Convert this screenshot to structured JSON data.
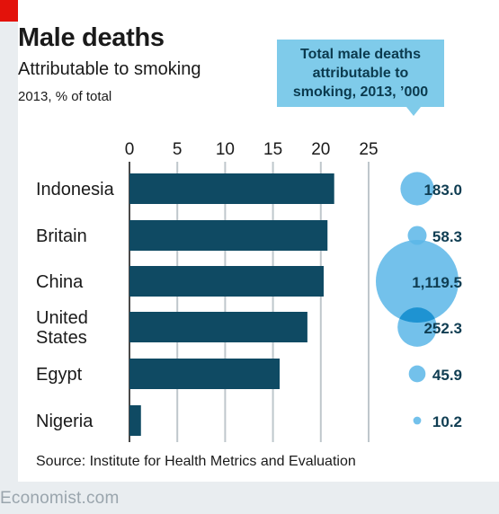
{
  "title": "Male deaths",
  "subtitle": "Attributable to smoking",
  "unit_note": "2013, % of total",
  "callout": [
    "Total male deaths",
    "attributable to",
    "smoking, 2013, ’000"
  ],
  "source": "Source: Institute for Health Metrics and Evaluation",
  "brand": "Economist.com",
  "colors": {
    "bar": "#0f4a63",
    "bubble": "#5bb6e8",
    "bubble_overlap": "#1e93d2",
    "grid": "#bfc7cc",
    "accent_red": "#e3120b"
  },
  "chart_data": {
    "type": "bar",
    "orientation": "horizontal",
    "categories": [
      [
        "Indonesia"
      ],
      [
        "Britain"
      ],
      [
        "China"
      ],
      [
        "United",
        "States"
      ],
      [
        "Egypt"
      ],
      [
        "Nigeria"
      ]
    ],
    "values": [
      21.4,
      20.7,
      20.3,
      18.6,
      15.7,
      1.2
    ],
    "xlim": [
      0,
      25
    ],
    "xticks": [
      "0",
      "5",
      "10",
      "15",
      "20",
      "25"
    ],
    "grid": true,
    "bubbles": {
      "values": [
        183.0,
        58.3,
        1119.5,
        252.3,
        45.9,
        10.2
      ],
      "labels": [
        "183.0",
        "58.3",
        "1,119.5",
        "252.3",
        "45.9",
        "10.2"
      ]
    }
  }
}
